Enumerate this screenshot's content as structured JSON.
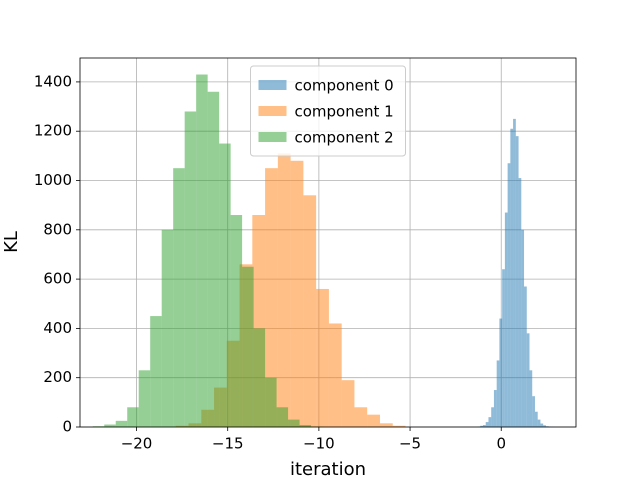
{
  "chart_data": {
    "type": "histogram",
    "xlabel": "iteration",
    "ylabel": "KL",
    "xlim": [
      -23.1,
      4.1
    ],
    "ylim": [
      0,
      1497
    ],
    "xticks": [
      {
        "value": -20,
        "label": "−20"
      },
      {
        "value": -15,
        "label": "−15"
      },
      {
        "value": -10,
        "label": "−10"
      },
      {
        "value": -5,
        "label": "−5"
      },
      0
    ],
    "yticks": [
      0,
      200,
      400,
      600,
      800,
      1000,
      1200,
      1400
    ],
    "grid": true,
    "legend": "upper center",
    "series": [
      {
        "name": "component 0",
        "color": "#1f77b4",
        "bins": [
          -1.3,
          -1.15,
          -1.0,
          -0.85,
          -0.7,
          -0.55,
          -0.4,
          -0.25,
          -0.1,
          0.05,
          0.2,
          0.35,
          0.5,
          0.65,
          0.8,
          0.95,
          1.1,
          1.25,
          1.4,
          1.55,
          1.7,
          1.85,
          2.0,
          2.15,
          2.3,
          2.45,
          2.6,
          2.75,
          2.9
        ],
        "values": [
          2,
          5,
          8,
          20,
          40,
          80,
          150,
          270,
          440,
          640,
          870,
          1070,
          1210,
          1250,
          1180,
          1010,
          800,
          570,
          380,
          230,
          125,
          62,
          30,
          14,
          7,
          3,
          2,
          1
        ]
      },
      {
        "name": "component 1",
        "color": "#ff7f0e",
        "bins": [
          -17.85,
          -17.15,
          -16.45,
          -15.75,
          -15.05,
          -14.35,
          -13.65,
          -12.95,
          -12.25,
          -11.55,
          -10.85,
          -10.15,
          -9.45,
          -8.75,
          -8.05,
          -7.35,
          -6.65,
          -5.95,
          -5.25
        ],
        "values": [
          5,
          15,
          70,
          160,
          350,
          660,
          860,
          1050,
          1110,
          1080,
          940,
          560,
          420,
          190,
          80,
          50,
          15,
          5
        ]
      },
      {
        "name": "component 2",
        "color": "#2ca02c",
        "bins": [
          -22.4,
          -21.77,
          -21.14,
          -20.51,
          -19.88,
          -19.25,
          -18.62,
          -17.99,
          -17.36,
          -16.73,
          -16.1,
          -15.47,
          -14.84,
          -14.21,
          -13.58,
          -12.95,
          -12.32,
          -11.69,
          -11.06,
          -10.43,
          -9.8
        ],
        "values": [
          3,
          10,
          25,
          80,
          230,
          450,
          800,
          1050,
          1280,
          1430,
          1360,
          1150,
          860,
          650,
          400,
          200,
          80,
          30,
          8,
          2
        ]
      }
    ]
  }
}
